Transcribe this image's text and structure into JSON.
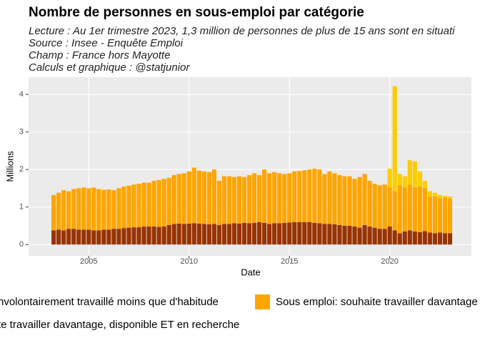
{
  "chart_data": {
    "type": "stacked_bar",
    "title": "Nombre de personnes en sous-emploi par catégorie",
    "subtitle": [
      "Lecture : Au 1er trimestre 2023, 1,3 million de personnes de plus de 15 ans sont en situati",
      "Source : Insee - Enquête Emploi",
      "Champ : France hors Mayotte",
      "Calculs et graphique : @statjunior"
    ],
    "x_label": "Date",
    "y_label": "Millions",
    "x": [
      2003.25,
      2003.5,
      2003.75,
      2004,
      2004.25,
      2004.5,
      2004.75,
      2005,
      2005.25,
      2005.5,
      2005.75,
      2006,
      2006.25,
      2006.5,
      2006.75,
      2007,
      2007.25,
      2007.5,
      2007.75,
      2008,
      2008.25,
      2008.5,
      2008.75,
      2009,
      2009.25,
      2009.5,
      2009.75,
      2010,
      2010.25,
      2010.5,
      2010.75,
      2011,
      2011.25,
      2011.5,
      2011.75,
      2012,
      2012.25,
      2012.5,
      2012.75,
      2013,
      2013.25,
      2013.5,
      2013.75,
      2014,
      2014.25,
      2014.5,
      2014.75,
      2015,
      2015.25,
      2015.5,
      2015.75,
      2016,
      2016.25,
      2016.5,
      2016.75,
      2017,
      2017.25,
      2017.5,
      2017.75,
      2018,
      2018.25,
      2018.5,
      2018.75,
      2019,
      2019.25,
      2019.5,
      2019.75,
      2020,
      2020.25,
      2020.5,
      2020.75,
      2021,
      2021.25,
      2021.5,
      2021.75,
      2022,
      2022.25,
      2022.5,
      2022.75,
      2023
    ],
    "series": [
      {
        "name": "nvolontairement travaillé moins que d'habitude",
        "color": "#993300",
        "values": [
          0.38,
          0.4,
          0.38,
          0.42,
          0.42,
          0.4,
          0.4,
          0.4,
          0.38,
          0.38,
          0.4,
          0.4,
          0.42,
          0.42,
          0.44,
          0.45,
          0.46,
          0.46,
          0.48,
          0.48,
          0.48,
          0.47,
          0.48,
          0.52,
          0.55,
          0.56,
          0.55,
          0.56,
          0.57,
          0.56,
          0.55,
          0.54,
          0.55,
          0.52,
          0.55,
          0.55,
          0.57,
          0.56,
          0.58,
          0.57,
          0.58,
          0.6,
          0.58,
          0.55,
          0.57,
          0.57,
          0.58,
          0.59,
          0.6,
          0.6,
          0.6,
          0.6,
          0.58,
          0.57,
          0.55,
          0.55,
          0.54,
          0.52,
          0.5,
          0.5,
          0.48,
          0.45,
          0.52,
          0.48,
          0.45,
          0.42,
          0.42,
          0.48,
          0.38,
          0.3,
          0.35,
          0.38,
          0.35,
          0.33,
          0.36,
          0.32,
          0.3,
          0.32,
          0.3,
          0.3
        ]
      },
      {
        "name": "Sous emploi: souhaite travailler davantage",
        "color": "#ffa500",
        "values": [
          0.94,
          0.98,
          1.07,
          1.0,
          1.06,
          1.1,
          1.12,
          1.1,
          1.14,
          1.1,
          1.06,
          1.07,
          1.03,
          1.08,
          1.11,
          1.12,
          1.14,
          1.16,
          1.17,
          1.17,
          1.22,
          1.25,
          1.27,
          1.26,
          1.3,
          1.32,
          1.35,
          1.39,
          1.48,
          1.41,
          1.4,
          1.39,
          1.45,
          1.18,
          1.27,
          1.27,
          1.23,
          1.26,
          1.22,
          1.28,
          1.32,
          1.25,
          1.42,
          1.35,
          1.36,
          1.33,
          1.3,
          1.31,
          1.35,
          1.36,
          1.38,
          1.4,
          1.44,
          1.43,
          1.33,
          1.4,
          1.36,
          1.33,
          1.32,
          1.32,
          1.27,
          1.35,
          1.36,
          1.22,
          1.17,
          1.16,
          1.18,
          1.04,
          1.04,
          1.28,
          1.17,
          1.22,
          1.17,
          1.22,
          1.14,
          0.95,
          0.98,
          0.92,
          0.95,
          0.93
        ]
      },
      {
        "name": "te travailler davantage, disponible ET en recherche",
        "color": "#ffcc00",
        "values": [
          0,
          0,
          0,
          0,
          0,
          0,
          0,
          0,
          0,
          0,
          0,
          0,
          0,
          0,
          0,
          0,
          0,
          0,
          0,
          0,
          0,
          0,
          0,
          0,
          0,
          0,
          0,
          0,
          0,
          0,
          0,
          0,
          0,
          0,
          0,
          0,
          0,
          0,
          0,
          0,
          0,
          0,
          0,
          0,
          0,
          0,
          0,
          0,
          0,
          0,
          0,
          0,
          0,
          0,
          0,
          0,
          0,
          0,
          0,
          0,
          0,
          0,
          0,
          0,
          0,
          0,
          0,
          0.5,
          2.8,
          0.3,
          0.3,
          0.65,
          0.7,
          0.4,
          0.2,
          0.15,
          0.1,
          0.08,
          0.05,
          0.05
        ]
      }
    ],
    "xlim": [
      2002.0,
      2024.07
    ],
    "xticks": [
      2005,
      2010,
      2015,
      2020
    ],
    "ylim": [
      -0.3,
      4.46
    ],
    "yticks": [
      0,
      1,
      2,
      3,
      4
    ],
    "grid": true
  }
}
